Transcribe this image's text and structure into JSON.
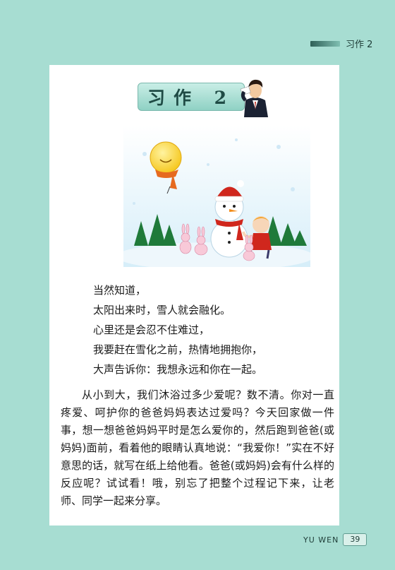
{
  "header": {
    "section_label": "习作 2"
  },
  "title": "习作 2",
  "poem": {
    "lines": [
      "当然知道，",
      "太阳出来时，雪人就会融化。",
      "心里还是会忍不住难过，",
      "我要赶在雪化之前，热情地拥抱你，",
      "大声告诉你：我想永远和你在一起。"
    ]
  },
  "paragraph": "从小到大，我们沐浴过多少爱呢？数不清。你对一直疼爱、呵护你的爸爸妈妈表达过爱吗？今天回家做一件事，想一想爸爸妈妈平时是怎么爱你的，然后跑到爸爸(或妈妈)面前，看着他的眼睛认真地说：“我爱你！”实在不好意思的话，就写在纸上给他看。爸爸(或妈妈)会有什么样的反应呢？试试看！哦，别忘了把整个过程记下来，让老师、同学一起来分享。",
  "footer": {
    "label": "YU WEN",
    "page_number": "39"
  },
  "colors": {
    "background": "#a7ddd2",
    "title_box": "#8fd1c4",
    "accent": "#1f4b45"
  }
}
